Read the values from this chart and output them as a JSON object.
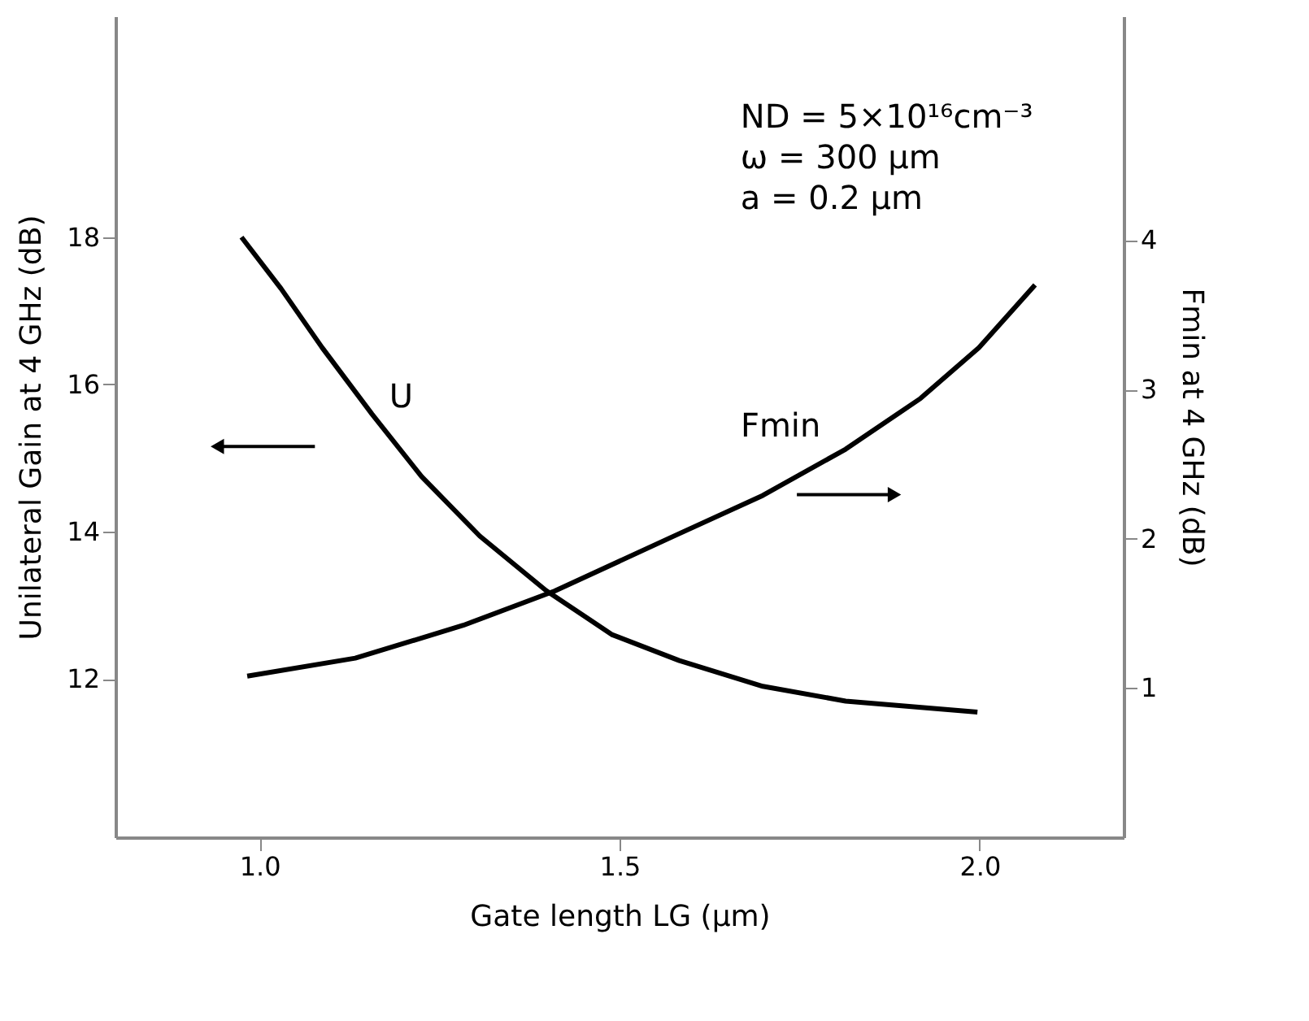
{
  "chart_data": {
    "type": "line",
    "xlabel": "Gate length LG (μm)",
    "ylabel": "Unilateral Gain at 4 GHz (dB)",
    "y2label": "Fmin at 4 GHz (dB)",
    "annotations": [
      "ND = 5×10¹⁶cm⁻³",
      "ω = 300 μm",
      "a = 0.2 μm"
    ],
    "series": [
      {
        "name": "U",
        "color": "#000000",
        "x": [
          0.975,
          1.03,
          1.087,
          1.156,
          1.225,
          1.306,
          1.398,
          1.49,
          1.583,
          1.699,
          1.814,
          1.997
        ],
        "values": [
          18.0,
          17.3,
          16.5,
          15.6,
          14.75,
          13.94,
          13.2,
          12.6,
          12.25,
          11.9,
          11.7,
          11.55
        ]
      },
      {
        "name": "Fmin",
        "color": "#000000",
        "axis": "y2",
        "x": [
          0.983,
          1.133,
          1.283,
          1.41,
          1.572,
          1.699,
          1.814,
          1.918,
          1.999,
          2.077
        ],
        "values": [
          1.08,
          1.2,
          1.42,
          1.65,
          2.01,
          2.29,
          2.6,
          2.94,
          3.28,
          3.7
        ]
      }
    ],
    "xlim": [
      0.8,
      2.2
    ],
    "xticks": [
      {
        "value": 1,
        "label": "1.0"
      },
      1.5,
      {
        "value": 2,
        "label": "2.0"
      }
    ],
    "ylim": [
      9.85,
      21
    ],
    "yticks": [
      12,
      14,
      16,
      18
    ],
    "y2lim": [
      0,
      5.5
    ],
    "y2ticks": [
      1,
      2,
      3,
      4
    ],
    "grid": false,
    "marker": "none",
    "line_style": "solid"
  }
}
